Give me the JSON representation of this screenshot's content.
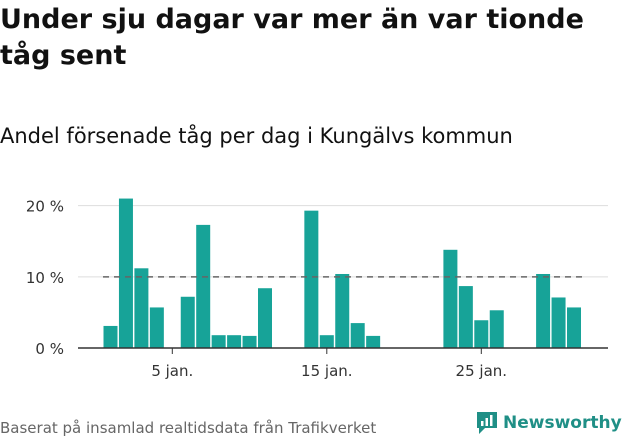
{
  "header": {
    "title": "Under sju dagar var mer än var tionde tåg sent",
    "subtitle": "Andel försenade tåg per dag i Kungälvs kommun"
  },
  "footer": {
    "source": "Baserat på insamlad realtidsdata från Trafikverket",
    "brand": "Newsworthy"
  },
  "colors": {
    "bar": "#17a398",
    "grid": "#dddddd",
    "reference": "#666666",
    "brand": "#1f8f86"
  },
  "chart_data": {
    "type": "bar",
    "x": [
      1,
      2,
      3,
      4,
      5,
      6,
      7,
      8,
      9,
      10,
      11,
      12,
      13,
      14,
      15,
      16,
      17,
      18,
      19,
      20,
      21,
      22,
      23,
      24,
      25,
      26,
      27,
      28,
      29,
      30,
      31
    ],
    "x_tick_values": [
      5,
      15,
      25
    ],
    "x_tick_labels": [
      "5 jan.",
      "15 jan.",
      "25 jan."
    ],
    "values": [
      3.1,
      21.0,
      11.2,
      5.7,
      0,
      7.2,
      17.3,
      1.8,
      1.8,
      1.7,
      8.4,
      0,
      0,
      19.3,
      1.8,
      10.4,
      3.5,
      1.7,
      0,
      0,
      0,
      0,
      13.8,
      8.7,
      3.9,
      5.3,
      0,
      0,
      10.4,
      7.1,
      5.7
    ],
    "y_ticks": [
      0,
      10,
      20
    ],
    "y_tick_labels": [
      "0 %",
      "10 %",
      "20 %"
    ],
    "ylim": [
      0,
      21.5
    ],
    "reference_line": 10,
    "grid": true
  }
}
